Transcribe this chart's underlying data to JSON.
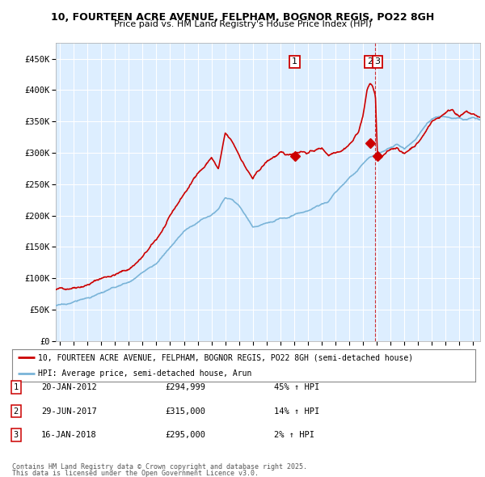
{
  "title1": "10, FOURTEEN ACRE AVENUE, FELPHAM, BOGNOR REGIS, PO22 8GH",
  "title2": "Price paid vs. HM Land Registry's House Price Index (HPI)",
  "ytick_vals": [
    0,
    50000,
    100000,
    150000,
    200000,
    250000,
    300000,
    350000,
    400000,
    450000
  ],
  "ylim": [
    0,
    475000
  ],
  "xlim_start": 1994.7,
  "xlim_end": 2025.5,
  "hpi_color": "#7ab4d8",
  "price_color": "#cc0000",
  "legend_label_price": "10, FOURTEEN ACRE AVENUE, FELPHAM, BOGNOR REGIS, PO22 8GH (semi-detached house)",
  "legend_label_hpi": "HPI: Average price, semi-detached house, Arun",
  "sales": [
    {
      "num": 1,
      "date": "20-JAN-2012",
      "year": 2012.05,
      "price": 294999,
      "pct": "45%",
      "dir": "↑"
    },
    {
      "num": 2,
      "date": "29-JUN-2017",
      "year": 2017.5,
      "price": 315000,
      "pct": "14%",
      "dir": "↑"
    },
    {
      "num": 3,
      "date": "16-JAN-2018",
      "year": 2018.05,
      "price": 295000,
      "pct": "2%",
      "dir": "↑"
    }
  ],
  "footer1": "Contains HM Land Registry data © Crown copyright and database right 2025.",
  "footer2": "This data is licensed under the Open Government Licence v3.0.",
  "bg_color": "#ddeeff",
  "grid_color": "#ffffff",
  "annotation_box_color": "#cc0000"
}
